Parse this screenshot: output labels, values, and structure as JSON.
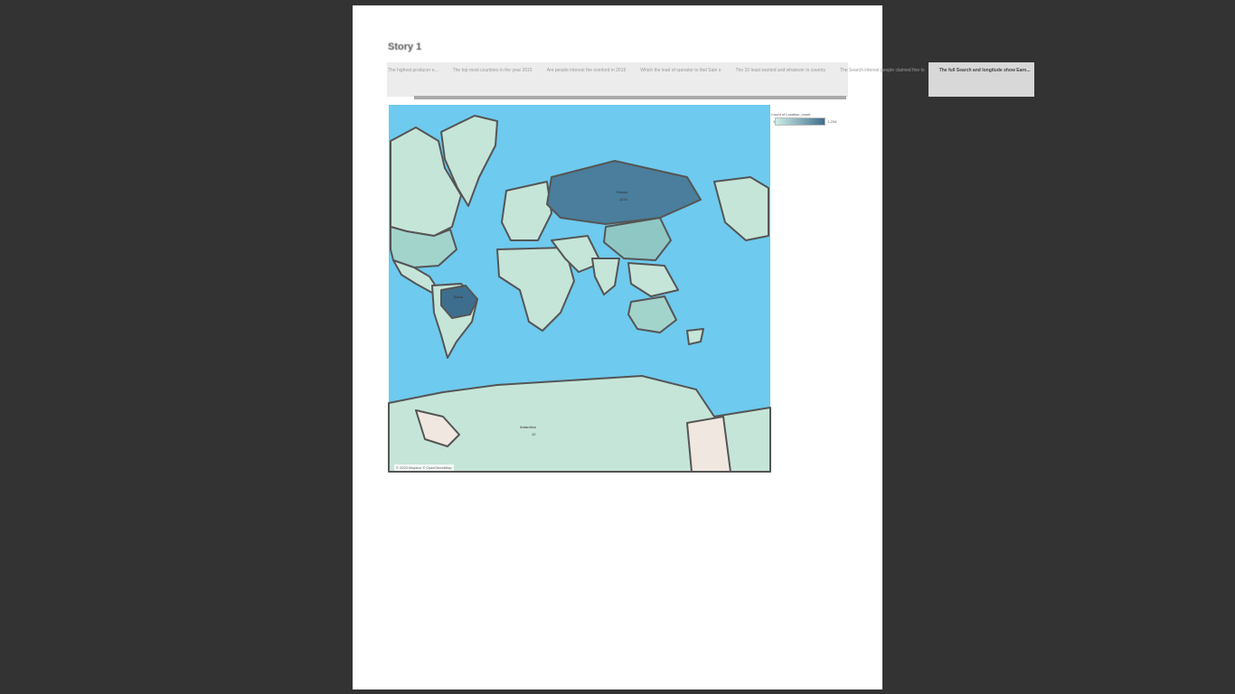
{
  "story": {
    "title": "Story 1",
    "points": [
      "The highest producer o...",
      "The top most countries in the year 2015",
      "Are people interest the overlord in 2019",
      "Which the lead of operator to Ibid Sale o",
      "The 10 least wanted and whatever in country",
      "The Search interest people claimed fine to",
      "The full Search and longitude show Earn..."
    ],
    "active_index": 6
  },
  "map": {
    "credit": "© 2023 Mapbox © OpenStreetMap",
    "ocean_color": "#6ecaee",
    "labels": {
      "russia": "Russia",
      "russia_value": "1234",
      "brazil": "Brazil",
      "antarctica": "Antarctica",
      "antarctica_value": "12"
    }
  },
  "legend": {
    "title": "Count of Location_count",
    "min": "1",
    "max": "1,234",
    "low_color": "#cdeee6",
    "high_color": "#3e6e8e"
  }
}
